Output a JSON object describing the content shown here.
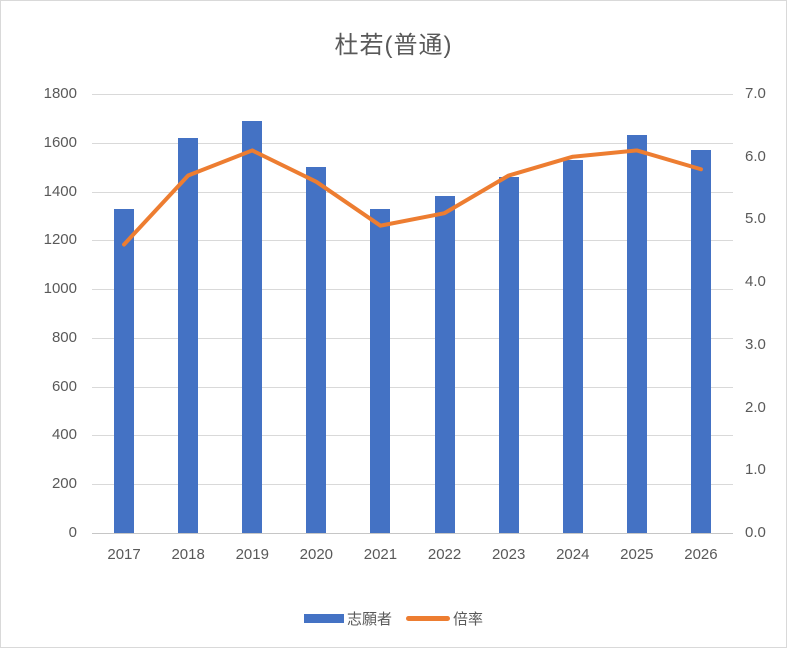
{
  "colors": {
    "bar": "#4472C4",
    "line": "#ED7D31",
    "grid": "#D9D9D9",
    "axis_line": "#C6C6C6",
    "text": "#595959",
    "border": "#D9D9D9",
    "background": "#FFFFFF"
  },
  "chart_data": {
    "type": "combo-bar-line",
    "title": "杜若(普通)",
    "categories": [
      "2017",
      "2018",
      "2019",
      "2020",
      "2021",
      "2022",
      "2023",
      "2024",
      "2025",
      "2026"
    ],
    "series": [
      {
        "name": "志願者",
        "type": "bar",
        "axis": "left",
        "color": "#4472C4",
        "values": [
          1330,
          1620,
          1690,
          1500,
          1330,
          1380,
          1460,
          1530,
          1630,
          1570
        ]
      },
      {
        "name": "倍率",
        "type": "line",
        "axis": "right",
        "color": "#ED7D31",
        "values": [
          4.6,
          5.7,
          6.1,
          5.6,
          4.9,
          5.1,
          5.7,
          6.0,
          6.1,
          5.8
        ]
      }
    ],
    "left_axis": {
      "min": 0,
      "max": 1800,
      "ticks": [
        "0",
        "200",
        "400",
        "600",
        "800",
        "1000",
        "1200",
        "1400",
        "1600",
        "1800"
      ]
    },
    "right_axis": {
      "min": 0,
      "max": 7,
      "ticks": [
        "0.0",
        "1.0",
        "2.0",
        "3.0",
        "4.0",
        "5.0",
        "6.0",
        "7.0"
      ]
    },
    "legend": {
      "position": "bottom",
      "entries": [
        "志願者",
        "倍率"
      ]
    },
    "grid": true
  }
}
